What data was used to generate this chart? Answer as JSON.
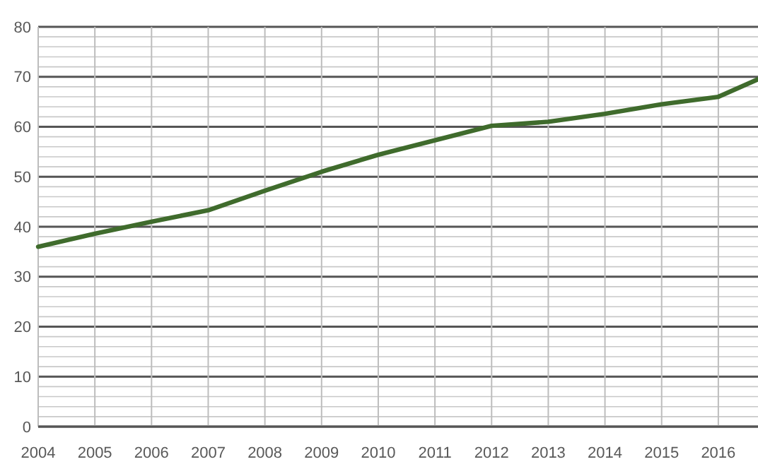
{
  "chart_data": {
    "type": "line",
    "x": [
      2004,
      2005,
      2006,
      2007,
      2008,
      2009,
      2010,
      2011,
      2012,
      2013,
      2014,
      2015,
      2016,
      2016.7
    ],
    "series": [
      {
        "color": "#3f6b2c",
        "values": [
          36,
          38.6,
          41,
          43.3,
          47.2,
          51,
          54.4,
          57.3,
          60.2,
          61,
          62.6,
          64.5,
          66,
          69.5
        ]
      }
    ],
    "xlim": [
      2004,
      2016.7
    ],
    "xticks": [
      2004,
      2005,
      2006,
      2007,
      2008,
      2009,
      2010,
      2011,
      2012,
      2013,
      2014,
      2015,
      2016
    ],
    "ylim": [
      0,
      80
    ],
    "yticks": [
      0,
      {
        "value": 2,
        "label": null
      },
      {
        "value": 4,
        "label": null
      },
      {
        "value": 6,
        "label": null
      },
      {
        "value": 8,
        "label": null
      },
      10,
      {
        "value": 12,
        "label": null
      },
      {
        "value": 14,
        "label": null
      },
      {
        "value": 16,
        "label": null
      },
      {
        "value": 18,
        "label": null
      },
      20,
      {
        "value": 22,
        "label": null
      },
      {
        "value": 24,
        "label": null
      },
      {
        "value": 26,
        "label": null
      },
      {
        "value": 28,
        "label": null
      },
      30,
      {
        "value": 32,
        "label": null
      },
      {
        "value": 34,
        "label": null
      },
      {
        "value": 36,
        "label": null
      },
      {
        "value": 38,
        "label": null
      },
      40,
      {
        "value": 42,
        "label": null
      },
      {
        "value": 44,
        "label": null
      },
      {
        "value": 46,
        "label": null
      },
      {
        "value": 48,
        "label": null
      },
      50,
      {
        "value": 52,
        "label": null
      },
      {
        "value": 54,
        "label": null
      },
      {
        "value": 56,
        "label": null
      },
      {
        "value": 58,
        "label": null
      },
      60,
      {
        "value": 62,
        "label": null
      },
      {
        "value": 64,
        "label": null
      },
      {
        "value": 66,
        "label": null
      },
      {
        "value": 68,
        "label": null
      },
      70,
      {
        "value": 72,
        "label": null
      },
      {
        "value": 74,
        "label": null
      },
      {
        "value": 76,
        "label": null
      },
      {
        "value": 78,
        "label": null
      },
      80
    ],
    "grid": true,
    "marker": "none",
    "line_style": "solid"
  }
}
